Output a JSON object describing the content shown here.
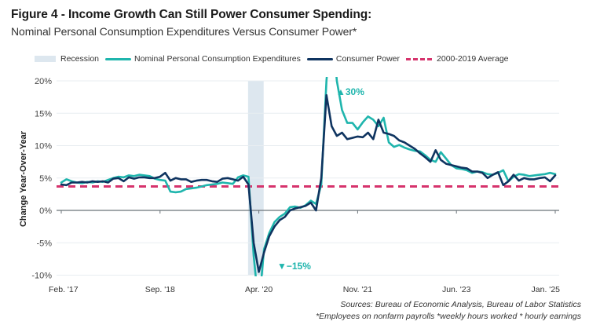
{
  "header": {
    "title": "Figure 4 - Income Growth Can Still Power Consumer Spending:",
    "subtitle": "Nominal Personal Consumption Expenditures Versus Consumer Power*"
  },
  "legend": [
    {
      "label": "Recession",
      "kind": "band",
      "color": "#dde7ef"
    },
    {
      "label": "Nominal Personal Consumption Expenditures",
      "kind": "line",
      "color": "#1fb5ad"
    },
    {
      "label": "Consumer Power",
      "kind": "line",
      "color": "#0f3460"
    },
    {
      "label": "2000-2019 Average",
      "kind": "dash",
      "color": "#d6336c"
    }
  ],
  "footer": {
    "source": "Sources: Bureau of Economic Analysis, Bureau of Labor Statistics",
    "note": "*Employees on nonfarm payrolls *weekly hours worked * hourly earnings"
  },
  "chart_data": {
    "type": "line",
    "title": "Figure 4 - Income Growth Can Still Power Consumer Spending:",
    "subtitle": "Nominal Personal Consumption Expenditures Versus Consumer Power*",
    "xlabel": "",
    "ylabel": "Change Year-Over-Year",
    "ylim": [
      -10,
      20
    ],
    "yticks": [
      20,
      15,
      10,
      5,
      0,
      -5,
      -10
    ],
    "ytick_labels": [
      "20%",
      "15%",
      "10%",
      "5%",
      "0%",
      "-5%",
      "-10%"
    ],
    "x_start": "Feb. '17",
    "x_end": "Jan. '25",
    "frequency": "monthly",
    "xtick_labels": [
      "Feb. '17",
      "Sep. '18",
      "Apr. '20",
      "Nov. '21",
      "Jun. '23",
      "Jan. '25"
    ],
    "xtick_month_index": [
      0,
      19,
      38,
      57,
      76,
      95
    ],
    "recession": {
      "start_index": 36,
      "end_index": 39
    },
    "reference_line": {
      "name": "2000-2019 Average",
      "value": 3.7
    },
    "grid": true,
    "legend_position": "top",
    "annotations": [
      {
        "text": "▲30%",
        "series": "Nominal Personal Consumption Expenditures",
        "note": "off-scale peak"
      },
      {
        "text": "▼−15%",
        "series": "Nominal Personal Consumption Expenditures",
        "note": "off-scale trough"
      }
    ],
    "series": [
      {
        "name": "Nominal Personal Consumption Expenditures",
        "color": "#1fb5ad",
        "values": [
          4.3,
          4.8,
          4.5,
          4.3,
          4.2,
          4.4,
          4.3,
          4.5,
          4.4,
          4.7,
          5.0,
          5.2,
          5.1,
          5.4,
          5.3,
          5.5,
          5.4,
          5.3,
          4.9,
          4.7,
          4.6,
          2.9,
          2.8,
          2.9,
          3.3,
          3.4,
          3.5,
          3.7,
          3.9,
          4.0,
          4.1,
          4.3,
          4.2,
          4.1,
          5.1,
          5.4,
          5.2,
          -7.0,
          -15.0,
          -6.0,
          -3.5,
          -1.8,
          -1.0,
          -0.5,
          0.5,
          0.6,
          0.4,
          0.8,
          1.5,
          1.0,
          4.0,
          20.0,
          30.0,
          20.0,
          15.5,
          13.5,
          13.5,
          12.5,
          13.6,
          14.5,
          14.0,
          13.0,
          14.3,
          10.5,
          9.8,
          10.1,
          9.7,
          9.4,
          9.2,
          9.1,
          8.5,
          7.8,
          7.5,
          9.0,
          8.0,
          7.0,
          6.5,
          6.4,
          6.2,
          5.8,
          6.0,
          5.9,
          5.6,
          5.5,
          5.8,
          6.2,
          4.5,
          5.2,
          5.6,
          5.5,
          5.3,
          5.4,
          5.5,
          5.6,
          5.8,
          5.6
        ]
      },
      {
        "name": "Consumer Power",
        "color": "#0f3460",
        "values": [
          4.0,
          3.9,
          4.3,
          4.3,
          4.4,
          4.3,
          4.5,
          4.4,
          4.5,
          4.3,
          4.9,
          5.0,
          4.5,
          5.1,
          4.9,
          5.1,
          5.1,
          5.0,
          5.0,
          5.2,
          5.8,
          4.6,
          5.0,
          4.8,
          4.8,
          4.4,
          4.6,
          4.7,
          4.7,
          4.5,
          4.4,
          4.9,
          5.0,
          4.8,
          4.6,
          5.2,
          4.0,
          -5.0,
          -9.5,
          -6.5,
          -4.0,
          -2.5,
          -1.5,
          -1.0,
          0.0,
          0.3,
          0.5,
          0.7,
          1.2,
          0.0,
          5.0,
          17.8,
          13.0,
          11.5,
          12.0,
          11.0,
          11.2,
          11.4,
          11.3,
          12.0,
          11.0,
          14.0,
          12.0,
          11.8,
          11.5,
          10.8,
          10.5,
          10.0,
          9.5,
          8.8,
          8.2,
          7.5,
          9.3,
          7.8,
          7.2,
          7.0,
          6.8,
          6.6,
          6.5,
          6.0,
          6.0,
          5.8,
          5.0,
          5.5,
          5.9,
          3.9,
          4.5,
          5.5,
          4.6,
          5.0,
          4.8,
          4.8,
          5.0,
          5.1,
          4.5,
          5.4
        ]
      }
    ]
  }
}
